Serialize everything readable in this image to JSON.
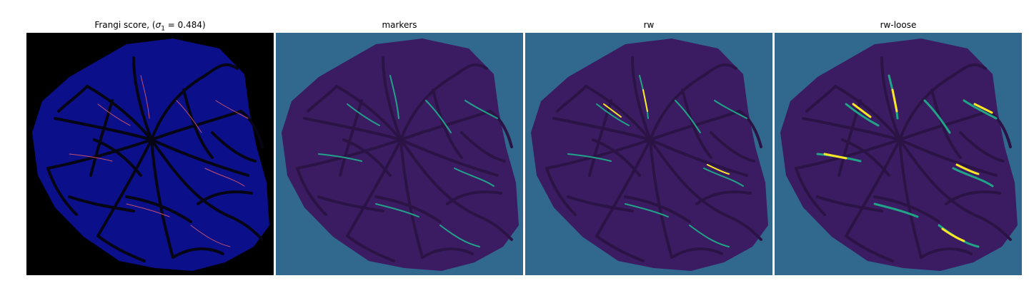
{
  "panels": [
    {
      "title_prefix": "Frangi score, (",
      "title_sigma": "σ",
      "title_sub": "1",
      "title_suffix": " = 0.484)",
      "background": "#000000",
      "tissue": "#0b0f8a",
      "vessel": "#050514",
      "highlight": "#c05070"
    },
    {
      "title": "markers",
      "background": "#31688e",
      "tissue": "#3b1c62",
      "vessel": "#2b1445",
      "highlight": "#23a08a"
    },
    {
      "title": "rw",
      "background": "#31688e",
      "tissue": "#3b1c62",
      "vessel": "#2b1445",
      "highlight": "#20a386",
      "peak": "#fde725"
    },
    {
      "title": "rw-loose",
      "background": "#31688e",
      "tissue": "#3b1c62",
      "vessel": "#2b1445",
      "highlight": "#20a386",
      "peak": "#fde725"
    }
  ]
}
